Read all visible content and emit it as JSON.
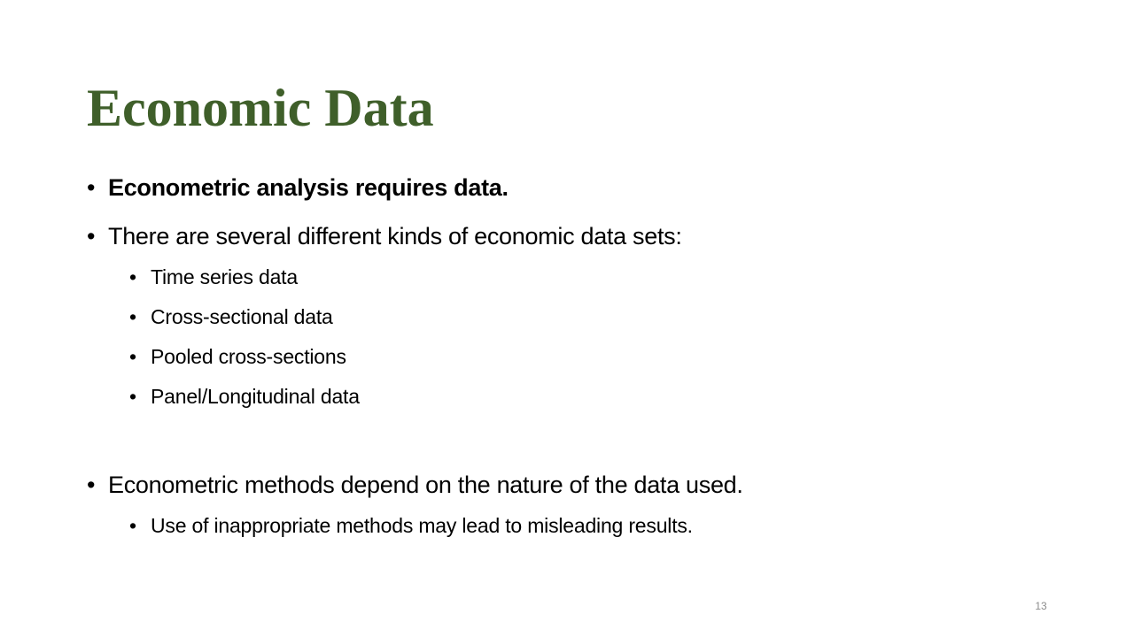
{
  "slide": {
    "title": "Economic Data",
    "bullet_char": "•",
    "bullets": [
      {
        "text": "Econometric analysis requires data."
      },
      {
        "text": "There are several different kinds of economic data sets:",
        "subitems": [
          "Time series data",
          "Cross-sectional data",
          "Pooled cross-sections",
          "Panel/Longitudinal data"
        ]
      },
      {
        "text": "Econometric methods depend on the nature of the data used.",
        "subitems": [
          "Use of inappropriate methods may lead to misleading results."
        ]
      }
    ],
    "page_number": "13",
    "colors": {
      "title": "#3f5f2a",
      "body_text": "#000000",
      "page_number": "#8c8c8c"
    }
  }
}
